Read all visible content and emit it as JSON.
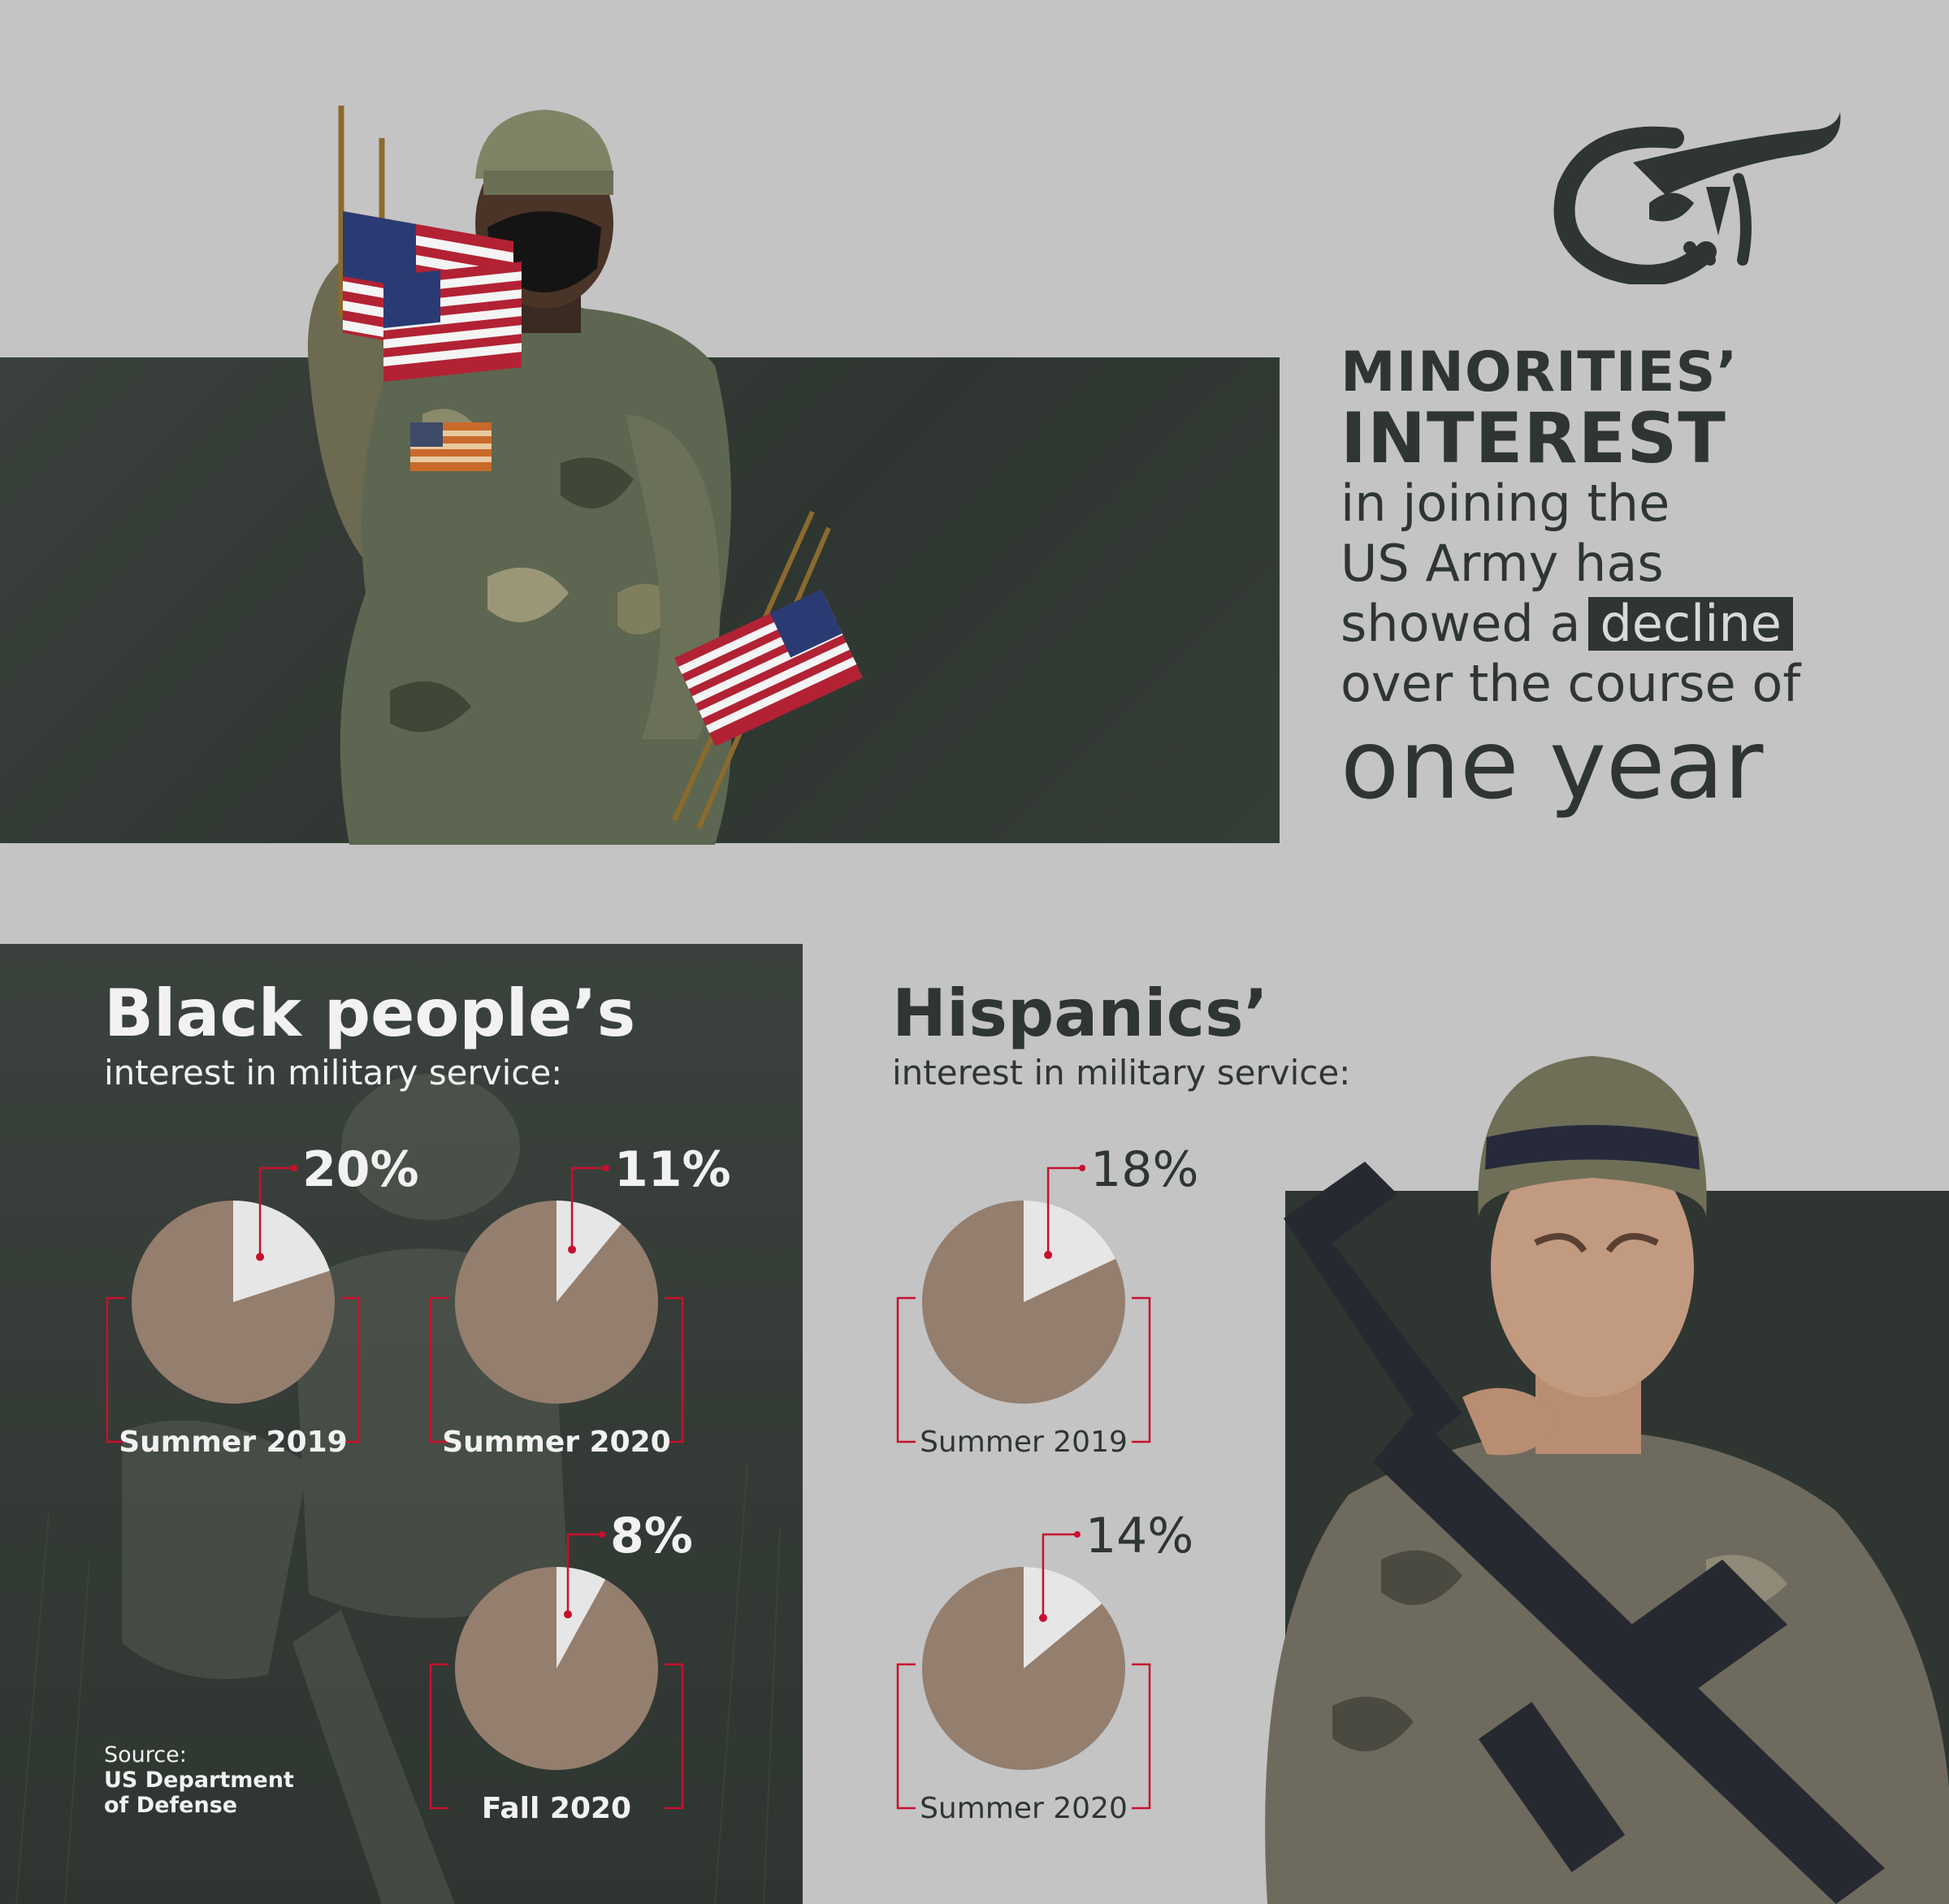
{
  "headline": {
    "line1": "MINORITIES’",
    "line2": "INTEREST",
    "line3": "in joining the",
    "line4": "US Army has",
    "line5_pre": "showed a",
    "line5_highlight": "decline",
    "line6": "over the course of",
    "line7": "one year"
  },
  "sections": {
    "black": {
      "title": "Black people’s",
      "subtitle": "interest in military service:"
    },
    "hispanic": {
      "title": "Hispanics’",
      "subtitle": "interest in military service:"
    }
  },
  "source": {
    "label": "Source:",
    "line1": "US Department",
    "line2": "of Defense"
  },
  "colors": {
    "background": "#c4c4c4",
    "dark_panel": "#2f3632",
    "pie_main": "#947e6e",
    "pie_slice": "#e6e6e6",
    "accent_red": "#c8102e"
  },
  "icons": {
    "logo": "al-mayadeen-calligraphy-logo"
  },
  "chart_data": [
    {
      "type": "pie",
      "group": "Black people’s interest in military service",
      "charts": [
        {
          "label": "Summer 2019",
          "value": 20,
          "value_label": "20%"
        },
        {
          "label": "Summer 2020",
          "value": 11,
          "value_label": "11%"
        },
        {
          "label": "Fall 2020",
          "value": 8,
          "value_label": "8%"
        }
      ]
    },
    {
      "type": "pie",
      "group": "Hispanics’ interest in military service",
      "charts": [
        {
          "label": "Summer 2019",
          "value": 18,
          "value_label": "18%"
        },
        {
          "label": "Summer 2020",
          "value": 14,
          "value_label": "14%"
        }
      ]
    }
  ]
}
